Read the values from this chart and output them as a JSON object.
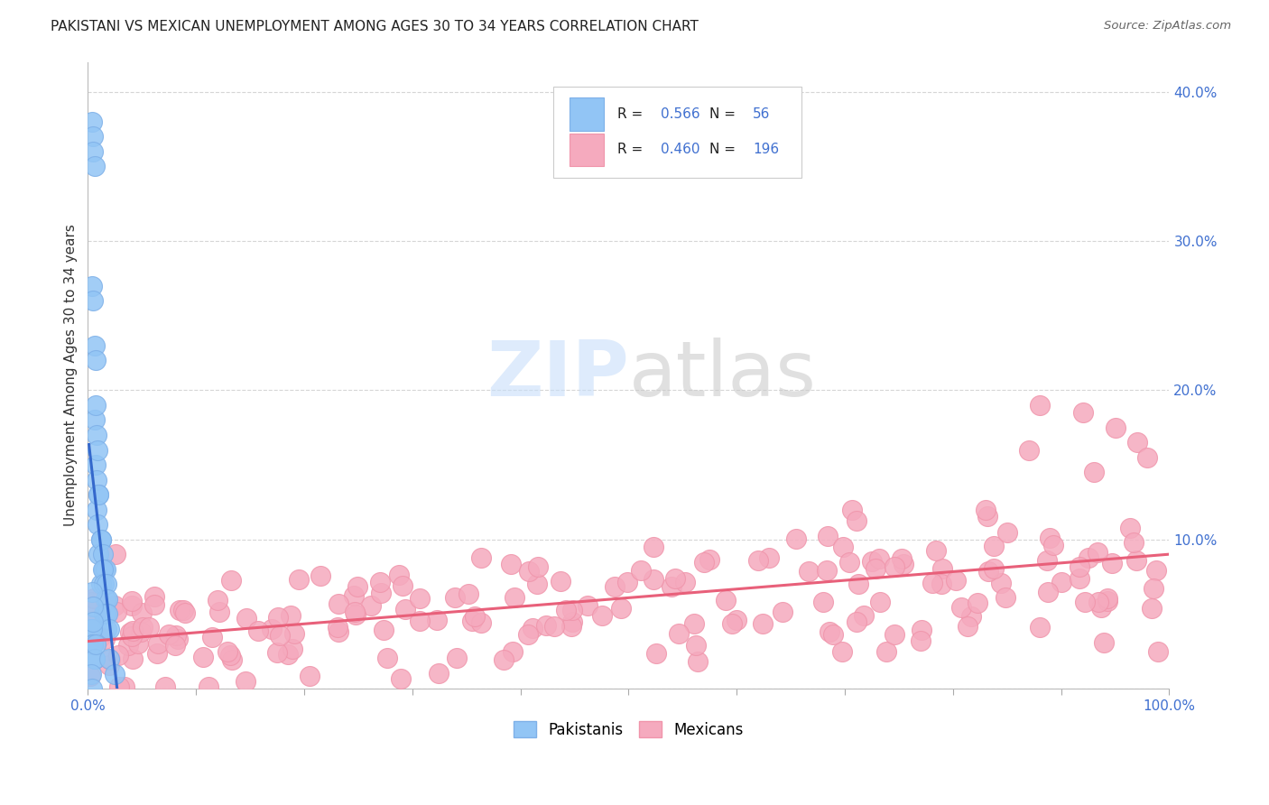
{
  "title": "PAKISTANI VS MEXICAN UNEMPLOYMENT AMONG AGES 30 TO 34 YEARS CORRELATION CHART",
  "source": "Source: ZipAtlas.com",
  "ylabel": "Unemployment Among Ages 30 to 34 years",
  "xlim": [
    0,
    1.0
  ],
  "ylim": [
    0.0,
    0.42
  ],
  "xticks": [
    0.0,
    0.1,
    0.2,
    0.3,
    0.4,
    0.5,
    0.6,
    0.7,
    0.8,
    0.9,
    1.0
  ],
  "xticklabels": [
    "0.0%",
    "",
    "",
    "",
    "",
    "",
    "",
    "",
    "",
    "",
    "100.0%"
  ],
  "yticks": [
    0.0,
    0.1,
    0.2,
    0.3,
    0.4
  ],
  "yticklabels": [
    "",
    "10.0%",
    "20.0%",
    "30.0%",
    "40.0%"
  ],
  "pakistani_R": 0.566,
  "pakistani_N": 56,
  "mexican_R": 0.46,
  "mexican_N": 196,
  "pakistani_color": "#92C5F5",
  "pakistani_edge_color": "#7EB0E8",
  "mexican_color": "#F5AABE",
  "mexican_edge_color": "#F095AB",
  "pakistani_line_color": "#3468CC",
  "mexican_line_color": "#E8607A",
  "legend_R_color": "#4070D0",
  "legend_text_color": "#222222",
  "background_color": "#FFFFFF",
  "watermark_color": "#C8DEFA",
  "grid_color": "#CCCCCC",
  "tick_color": "#4070D0",
  "title_fontsize": 11,
  "axis_label_fontsize": 11,
  "tick_fontsize": 11
}
